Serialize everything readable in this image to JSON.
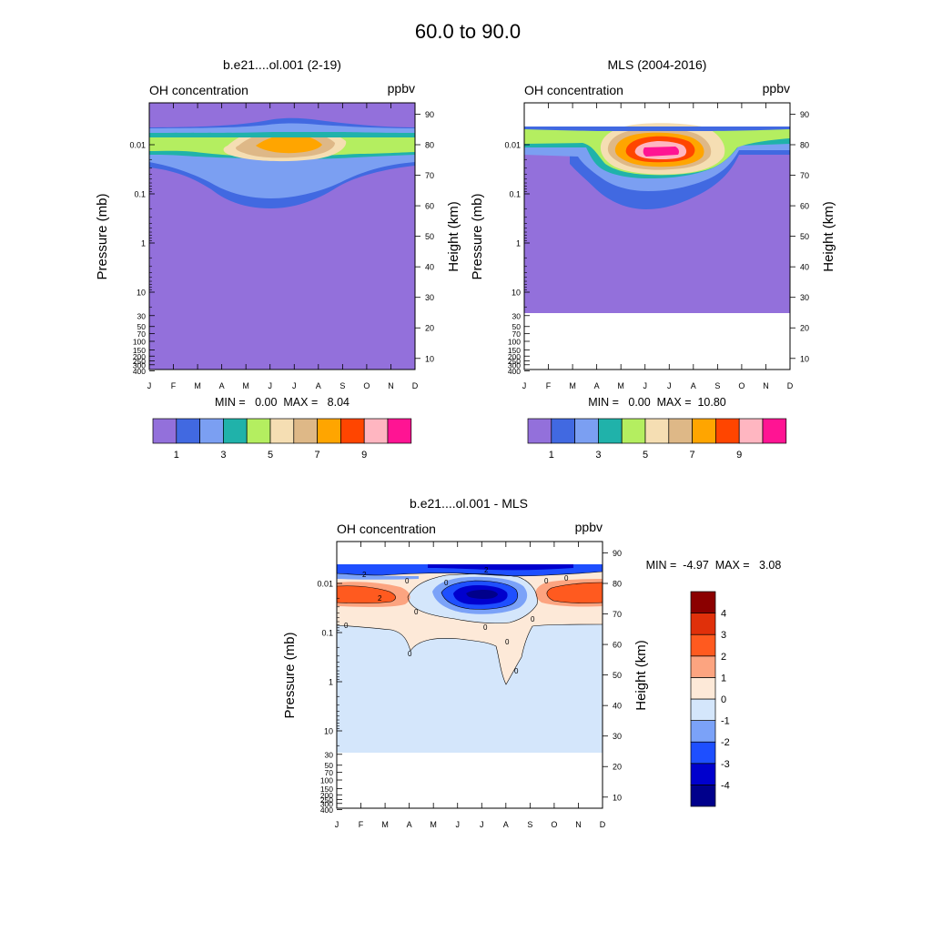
{
  "title": "60.0 to  90.0",
  "colors": {
    "abs_levels": [
      "#9370db",
      "#4169e1",
      "#7b9ff2",
      "#20b2aa",
      "#b4ee60",
      "#f5deb3",
      "#deb887",
      "#ffa500",
      "#ff4500",
      "#ffb6c1",
      "#ff1493"
    ],
    "diff_levels": [
      "#00008b",
      "#0000cd",
      "#1e4fff",
      "#7ba2f8",
      "#d4e6fb",
      "#fde9d8",
      "#fca480",
      "#ff5a1f",
      "#e0300a",
      "#8b0000"
    ]
  },
  "chart_data": [
    {
      "type": "heatmap",
      "title": "b.e21....ol.001 (2-19)",
      "variable_label": "OH concentration",
      "units": "ppbv",
      "ylabel": "Pressure (mb)",
      "ylabel_right": "Height (km)",
      "x": [
        "J",
        "F",
        "M",
        "A",
        "M",
        "J",
        "J",
        "A",
        "S",
        "O",
        "N",
        "D"
      ],
      "y_ticks": [
        "0.01",
        "0.1",
        "1",
        "10",
        "30",
        "50",
        "70",
        "100",
        "150",
        "200",
        "250",
        "300",
        "400"
      ],
      "y_right_ticks": [
        "90",
        "80",
        "70",
        "60",
        "50",
        "40",
        "30",
        "20",
        "10"
      ],
      "stats_text": "MIN =   0.00  MAX =   8.04",
      "min": 0.0,
      "max": 8.04,
      "colorbar_labels": [
        "1",
        "3",
        "5",
        "7",
        "9"
      ]
    },
    {
      "type": "heatmap",
      "title": "MLS (2004-2016)",
      "variable_label": "OH concentration",
      "units": "ppbv",
      "ylabel": "Pressure (mb)",
      "ylabel_right": "Height (km)",
      "x": [
        "J",
        "F",
        "M",
        "A",
        "M",
        "J",
        "J",
        "A",
        "S",
        "O",
        "N",
        "D"
      ],
      "y_ticks": [
        "0.01",
        "0.1",
        "1",
        "10",
        "30",
        "50",
        "70",
        "100",
        "150",
        "200",
        "250",
        "300",
        "400"
      ],
      "y_right_ticks": [
        "90",
        "80",
        "70",
        "60",
        "50",
        "40",
        "30",
        "20",
        "10"
      ],
      "stats_text": "MIN =   0.00  MAX =  10.80",
      "min": 0.0,
      "max": 10.8,
      "colorbar_labels": [
        "1",
        "3",
        "5",
        "7",
        "9"
      ]
    },
    {
      "type": "heatmap",
      "title": "b.e21....ol.001 - MLS",
      "variable_label": "OH concentration",
      "units": "ppbv",
      "ylabel": "Pressure (mb)",
      "ylabel_right": "Height (km)",
      "x": [
        "J",
        "F",
        "M",
        "A",
        "M",
        "J",
        "J",
        "A",
        "S",
        "O",
        "N",
        "D"
      ],
      "y_ticks": [
        "0.01",
        "0.1",
        "1",
        "10",
        "30",
        "50",
        "70",
        "100",
        "150",
        "200",
        "250",
        "300",
        "400"
      ],
      "y_right_ticks": [
        "90",
        "80",
        "70",
        "60",
        "50",
        "40",
        "30",
        "20",
        "10"
      ],
      "stats_text": "MIN =  -4.97  MAX =   3.08",
      "min": -4.97,
      "max": 3.08,
      "colorbar_labels": [
        "4",
        "3",
        "2",
        "1",
        "0",
        "-1",
        "-2",
        "-3",
        "-4"
      ],
      "contour_labels": [
        "2",
        "0",
        "2",
        "2",
        "0",
        "0",
        "0",
        "0",
        "0",
        "0",
        "0",
        "0",
        "0",
        "0"
      ]
    }
  ]
}
